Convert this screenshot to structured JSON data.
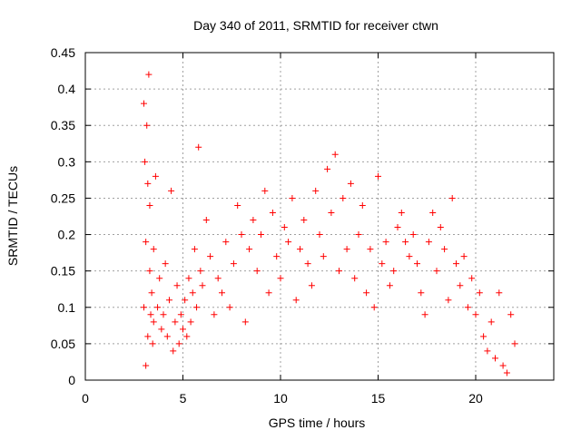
{
  "chart_data": {
    "type": "scatter",
    "title": "Day 340 of 2011, SRMTID for receiver ctwn",
    "xlabel": "GPS time / hours",
    "ylabel": "SRMTID / TECUs",
    "xlim": [
      0,
      24
    ],
    "ylim": [
      0,
      0.45
    ],
    "xticks": [
      0,
      5,
      10,
      15,
      20
    ],
    "xtick_labels": [
      "0",
      "5",
      "10",
      "15",
      "20"
    ],
    "yticks": [
      0,
      0.05,
      0.1,
      0.15,
      0.2,
      0.25,
      0.3,
      0.35,
      0.4,
      0.45
    ],
    "ytick_labels": [
      "0",
      "0.05",
      "0.1",
      "0.15",
      "0.2",
      "0.25",
      "0.3",
      "0.35",
      "0.4",
      "0.45"
    ],
    "grid": true,
    "marker": "+",
    "color": "#ff0000",
    "series": [
      {
        "name": "SRMTID",
        "x": [
          3.0,
          3.0,
          3.05,
          3.1,
          3.1,
          3.15,
          3.2,
          3.2,
          3.25,
          3.3,
          3.3,
          3.35,
          3.4,
          3.45,
          3.5,
          3.5,
          3.6,
          3.7,
          3.8,
          3.9,
          4.0,
          4.1,
          4.2,
          4.3,
          4.4,
          4.5,
          4.6,
          4.7,
          4.8,
          4.9,
          5.0,
          5.1,
          5.2,
          5.3,
          5.4,
          5.5,
          5.6,
          5.7,
          5.8,
          5.9,
          6.0,
          6.2,
          6.4,
          6.6,
          6.8,
          7.0,
          7.2,
          7.4,
          7.6,
          7.8,
          8.0,
          8.2,
          8.4,
          8.6,
          8.8,
          9.0,
          9.2,
          9.4,
          9.6,
          9.8,
          10.0,
          10.2,
          10.4,
          10.6,
          10.8,
          11.0,
          11.2,
          11.4,
          11.6,
          11.8,
          12.0,
          12.2,
          12.4,
          12.6,
          12.8,
          13.0,
          13.2,
          13.4,
          13.6,
          13.8,
          14.0,
          14.2,
          14.4,
          14.6,
          14.8,
          15.0,
          15.2,
          15.4,
          15.6,
          15.8,
          16.0,
          16.2,
          16.4,
          16.6,
          16.8,
          17.0,
          17.2,
          17.4,
          17.6,
          17.8,
          18.0,
          18.2,
          18.4,
          18.6,
          18.8,
          19.0,
          19.2,
          19.4,
          19.6,
          19.8,
          20.0,
          20.2,
          20.4,
          20.6,
          20.8,
          21.0,
          21.2,
          21.4,
          21.6,
          21.8,
          22.0
        ],
        "y": [
          0.1,
          0.38,
          0.3,
          0.02,
          0.19,
          0.35,
          0.27,
          0.06,
          0.42,
          0.15,
          0.24,
          0.09,
          0.12,
          0.05,
          0.18,
          0.08,
          0.28,
          0.1,
          0.14,
          0.07,
          0.09,
          0.16,
          0.06,
          0.11,
          0.26,
          0.04,
          0.08,
          0.13,
          0.05,
          0.09,
          0.07,
          0.11,
          0.06,
          0.14,
          0.08,
          0.12,
          0.18,
          0.1,
          0.32,
          0.15,
          0.13,
          0.22,
          0.17,
          0.09,
          0.14,
          0.12,
          0.19,
          0.1,
          0.16,
          0.24,
          0.2,
          0.08,
          0.18,
          0.22,
          0.15,
          0.2,
          0.26,
          0.12,
          0.23,
          0.17,
          0.14,
          0.21,
          0.19,
          0.25,
          0.11,
          0.18,
          0.22,
          0.16,
          0.13,
          0.26,
          0.2,
          0.17,
          0.29,
          0.23,
          0.31,
          0.15,
          0.25,
          0.18,
          0.27,
          0.14,
          0.2,
          0.24,
          0.12,
          0.18,
          0.1,
          0.28,
          0.16,
          0.19,
          0.13,
          0.15,
          0.21,
          0.23,
          0.19,
          0.17,
          0.2,
          0.16,
          0.12,
          0.09,
          0.19,
          0.23,
          0.15,
          0.21,
          0.18,
          0.11,
          0.25,
          0.16,
          0.13,
          0.17,
          0.1,
          0.14,
          0.09,
          0.12,
          0.06,
          0.04,
          0.08,
          0.03,
          0.12,
          0.02,
          0.01,
          0.09,
          0.05
        ]
      }
    ]
  }
}
